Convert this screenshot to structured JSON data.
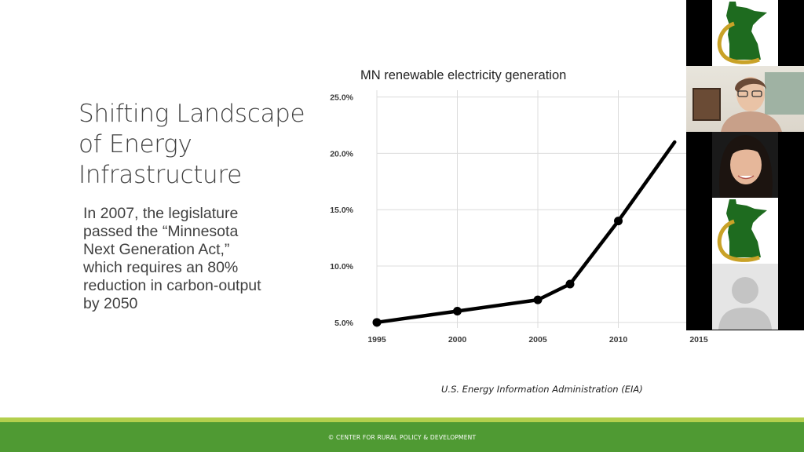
{
  "slide": {
    "title": "Shifting Landscape\nof Energy\nInfrastructure",
    "body": "In 2007, the legislature\npassed the “Minnesota\nNext Generation Act,”\nwhich requires an 80%\nreduction in carbon-output\nby 2050",
    "source": "U.S. Energy Information Administration (EIA)",
    "footer": "© CENTER FOR RURAL POLICY & DEVELOPMENT",
    "colors": {
      "footer_green": "#4f9a33",
      "footer_stripe": "#b3cf4d",
      "logo_green": "#1e6b1f",
      "logo_gold": "#c9a227"
    }
  },
  "chart_data": {
    "type": "line",
    "title": "MN renewable electricity generation",
    "xlabel": "",
    "ylabel": "",
    "x_ticks": [
      "1995",
      "2000",
      "2005",
      "2010",
      "2015"
    ],
    "y_ticks": [
      "5.0%",
      "10.0%",
      "15.0%",
      "20.0%",
      "25.0%"
    ],
    "xlim": [
      1995,
      2015
    ],
    "ylim": [
      4.5,
      25.6
    ],
    "grid": true,
    "series": [
      {
        "x": [
          1995,
          2000,
          2005,
          2007,
          2010,
          2013.5
        ],
        "y": [
          5.0,
          6.0,
          7.0,
          8.4,
          14.0,
          21.0
        ]
      }
    ]
  },
  "participants": [
    {
      "kind": "logo",
      "icon": "minnesota-state-logo-icon"
    },
    {
      "kind": "camera",
      "icon": "participant-video-icon"
    },
    {
      "kind": "camera",
      "icon": "participant-video-icon"
    },
    {
      "kind": "logo",
      "icon": "minnesota-state-logo-icon"
    },
    {
      "kind": "avatar",
      "icon": "default-avatar-icon"
    }
  ]
}
